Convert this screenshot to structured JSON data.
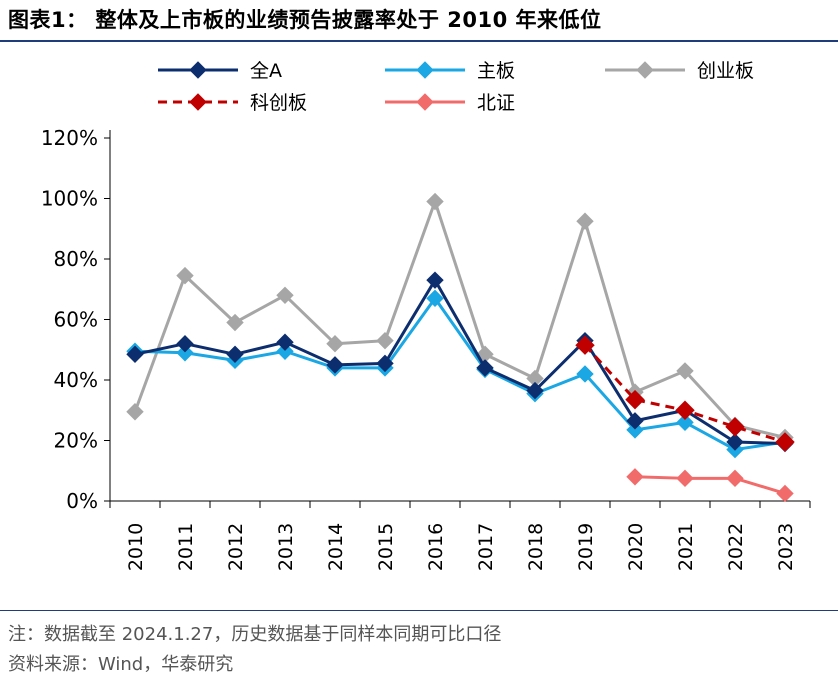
{
  "header": {
    "title": "图表1：  整体及上市板的业绩预告披露率处于 2010 年来低位"
  },
  "footer": {
    "note": "注：数据截至 2024.1.27，历史数据基于同样本同期可比口径",
    "source": "资料来源：Wind，华泰研究"
  },
  "chart_data": {
    "type": "line",
    "x": [
      "2010",
      "2011",
      "2012",
      "2013",
      "2014",
      "2015",
      "2016",
      "2017",
      "2018",
      "2019",
      "2020",
      "2021",
      "2022",
      "2023"
    ],
    "yticks": [
      "0%",
      "20%",
      "40%",
      "60%",
      "80%",
      "100%",
      "120%"
    ],
    "ylim": [
      0,
      120
    ],
    "legend_position": "top",
    "series": [
      {
        "name": "全A",
        "color": "#0d2e6e",
        "dash": false,
        "values": [
          48.5,
          52,
          48.5,
          52.5,
          45,
          45.5,
          73,
          44,
          36.5,
          53,
          26.5,
          30,
          19.5,
          19
        ]
      },
      {
        "name": "主板",
        "color": "#1aa7e4",
        "dash": false,
        "values": [
          49.5,
          49,
          46.5,
          49.5,
          44,
          44,
          67,
          43.5,
          35.5,
          42,
          23.5,
          26,
          17,
          19.5
        ]
      },
      {
        "name": "创业板",
        "color": "#a6a6a6",
        "dash": false,
        "values": [
          29.5,
          74.5,
          59,
          68,
          52,
          53,
          99,
          48.5,
          40.5,
          92.5,
          36,
          43,
          25,
          21
        ]
      },
      {
        "name": "科创板",
        "color": "#c00000",
        "dash": true,
        "values": [
          null,
          null,
          null,
          null,
          null,
          null,
          null,
          null,
          null,
          51.5,
          33.5,
          30,
          24.5,
          19.5
        ]
      },
      {
        "name": "北证",
        "color": "#f26b6b",
        "dash": false,
        "values": [
          null,
          null,
          null,
          null,
          null,
          null,
          null,
          null,
          null,
          null,
          8,
          7.5,
          7.5,
          2.5
        ]
      }
    ]
  }
}
